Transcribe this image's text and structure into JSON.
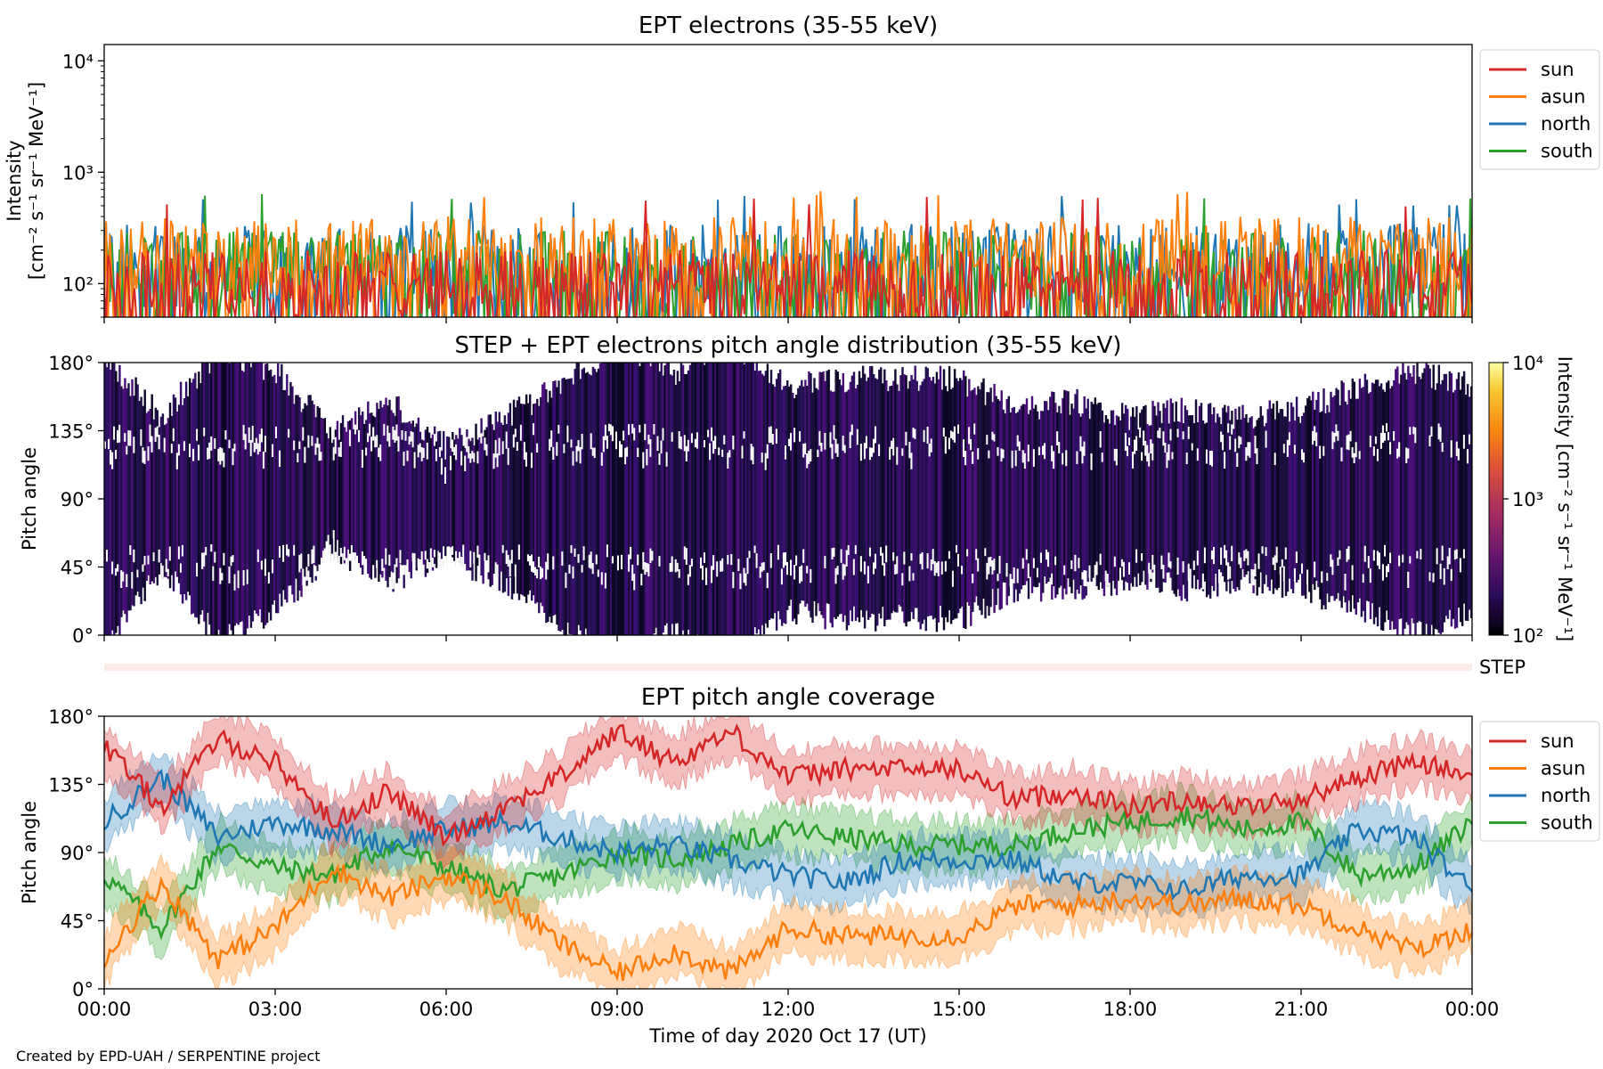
{
  "footer": {
    "credit": "Created by EPD-UAH / SERPENTINE project"
  },
  "colors": {
    "sun": "#d62728",
    "asun": "#ff7f0e",
    "north": "#1f77b4",
    "south": "#2ca02c"
  },
  "chart_data": [
    {
      "type": "line",
      "title": "EPT electrons (35-55 keV)",
      "ylabel": {
        "line1": "Intensity",
        "line2": "[cm⁻² s⁻¹ sr⁻¹ MeV⁻¹]"
      },
      "yscale": "log",
      "ylim": [
        50,
        14000
      ],
      "yticks": [
        {
          "value": 100,
          "label": "10²"
        },
        {
          "value": 1000,
          "label": "10³"
        },
        {
          "value": 10000,
          "label": "10⁴"
        }
      ],
      "xlim_hours": [
        0,
        24
      ],
      "legend_loc": "outside-upper-right",
      "series": [
        {
          "name": "sun",
          "typical": [
            50,
            200
          ],
          "peak": 600
        },
        {
          "name": "asun",
          "typical": [
            70,
            400
          ],
          "peak": 700
        },
        {
          "name": "north",
          "typical": [
            60,
            350
          ],
          "peak": 620
        },
        {
          "name": "south",
          "typical": [
            50,
            300
          ],
          "peak": 650
        }
      ]
    },
    {
      "type": "heatmap",
      "title": "STEP + EPT electrons pitch angle distribution (35-55 keV)",
      "ylabel": "Pitch angle",
      "ylim": [
        0,
        180
      ],
      "yticks": [
        "0°",
        "45°",
        "90°",
        "135°",
        "180°"
      ],
      "xlim_hours": [
        0,
        24
      ],
      "colorbar": {
        "label": "Intensity [cm⁻² s⁻¹ sr⁻¹ MeV⁻¹]",
        "scale": "log",
        "range": [
          100,
          10000
        ],
        "ticks": [
          {
            "value": 100,
            "label": "10²"
          },
          {
            "value": 1000,
            "label": "10³"
          },
          {
            "value": 10000,
            "label": "10⁴"
          }
        ]
      }
    },
    {
      "type": "bar",
      "label": "STEP",
      "xlim_hours": [
        0,
        24
      ]
    },
    {
      "type": "line",
      "title": "EPT pitch angle coverage",
      "ylabel": "Pitch angle",
      "ylim": [
        0,
        180
      ],
      "yticks": [
        "0°",
        "45°",
        "90°",
        "135°",
        "180°"
      ],
      "xlabel": "Time of day 2020 Oct 17 (UT)",
      "xticks": [
        "00:00",
        "03:00",
        "06:00",
        "09:00",
        "12:00",
        "15:00",
        "18:00",
        "21:00",
        "00:00"
      ],
      "legend_loc": "outside-upper-right",
      "x_hours": [
        0,
        1,
        2,
        3,
        4,
        5,
        6,
        7,
        8,
        9,
        10,
        11,
        12,
        13,
        14,
        15,
        16,
        17,
        18,
        19,
        20,
        21,
        22,
        23,
        24
      ],
      "series": [
        {
          "name": "sun",
          "values": [
            160,
            120,
            165,
            150,
            110,
            130,
            100,
            120,
            140,
            170,
            150,
            170,
            140,
            145,
            145,
            145,
            125,
            130,
            120,
            125,
            120,
            125,
            140,
            150,
            140
          ]
        },
        {
          "name": "asun",
          "values": [
            20,
            70,
            20,
            40,
            80,
            60,
            75,
            60,
            30,
            10,
            25,
            10,
            40,
            35,
            35,
            35,
            55,
            55,
            60,
            55,
            60,
            55,
            40,
            25,
            40
          ]
        },
        {
          "name": "north",
          "values": [
            110,
            140,
            100,
            110,
            105,
            95,
            105,
            110,
            100,
            90,
            95,
            85,
            75,
            70,
            85,
            85,
            85,
            70,
            70,
            65,
            75,
            75,
            105,
            100,
            65
          ]
        },
        {
          "name": "south",
          "values": [
            75,
            40,
            95,
            80,
            75,
            95,
            80,
            65,
            75,
            90,
            85,
            95,
            105,
            100,
            95,
            95,
            95,
            105,
            110,
            115,
            105,
            110,
            75,
            80,
            110
          ]
        }
      ]
    }
  ]
}
